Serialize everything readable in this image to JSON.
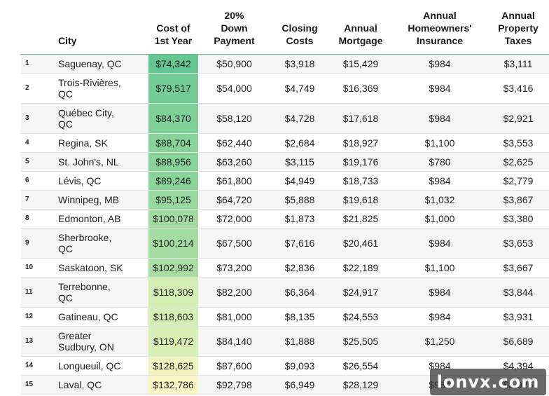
{
  "headers": {
    "rank": "",
    "city": "City",
    "cost": "Cost of\n1st Year",
    "down": "20%\nDown\nPayment",
    "closing": "Closing\nCosts",
    "mortgage": "Annual\nMortgage",
    "insurance": "Annual\nHomeowners'\nInsurance",
    "taxes": "Annual\nProperty\nTaxes"
  },
  "rows": [
    {
      "rank": "1",
      "city": "Saguenay, QC",
      "cost": "$74,342",
      "down": "$50,900",
      "closing": "$3,918",
      "mortgage": "$15,429",
      "insurance": "$984",
      "taxes": "$3,111",
      "cost_color": "#66c691"
    },
    {
      "rank": "2",
      "city": "Trois-Rivières,\nQC",
      "cost": "$79,517",
      "down": "$54,000",
      "closing": "$4,749",
      "mortgage": "$16,369",
      "insurance": "$984",
      "taxes": "$3,416",
      "cost_color": "#73cb95"
    },
    {
      "rank": "3",
      "city": "Québec City,\nQC",
      "cost": "$84,370",
      "down": "$58,120",
      "closing": "$4,728",
      "mortgage": "$17,618",
      "insurance": "$984",
      "taxes": "$2,921",
      "cost_color": "#7ecf98"
    },
    {
      "rank": "4",
      "city": "Regina, SK",
      "cost": "$88,704",
      "down": "$62,440",
      "closing": "$2,684",
      "mortgage": "$18,927",
      "insurance": "$1,100",
      "taxes": "$3,553",
      "cost_color": "#88d39a"
    },
    {
      "rank": "5",
      "city": "St. John's, NL",
      "cost": "$88,956",
      "down": "$63,260",
      "closing": "$3,115",
      "mortgage": "$19,176",
      "insurance": "$780",
      "taxes": "$2,625",
      "cost_color": "#89d39b"
    },
    {
      "rank": "6",
      "city": "Lévis, QC",
      "cost": "$89,246",
      "down": "$61,800",
      "closing": "$4,949",
      "mortgage": "$18,733",
      "insurance": "$984",
      "taxes": "$2,779",
      "cost_color": "#8ad49b"
    },
    {
      "rank": "7",
      "city": "Winnipeg, MB",
      "cost": "$95,125",
      "down": "$64,720",
      "closing": "$5,888",
      "mortgage": "$19,618",
      "insurance": "$1,032",
      "taxes": "$3,867",
      "cost_color": "#97d89e"
    },
    {
      "rank": "8",
      "city": "Edmonton, AB",
      "cost": "$100,078",
      "down": "$72,000",
      "closing": "$1,873",
      "mortgage": "$21,825",
      "insurance": "$1,000",
      "taxes": "$3,380",
      "cost_color": "#a2dca1"
    },
    {
      "rank": "9",
      "city": "Sherbrooke,\nQC",
      "cost": "$100,214",
      "down": "$67,500",
      "closing": "$7,616",
      "mortgage": "$20,461",
      "insurance": "$984",
      "taxes": "$3,653",
      "cost_color": "#a3dca1"
    },
    {
      "rank": "10",
      "city": "Saskatoon, SK",
      "cost": "$102,992",
      "down": "$73,200",
      "closing": "$2,836",
      "mortgage": "$22,189",
      "insurance": "$1,100",
      "taxes": "$3,667",
      "cost_color": "#a9dea3"
    },
    {
      "rank": "11",
      "city": "Terrebonne,\nQC",
      "cost": "$118,309",
      "down": "$82,200",
      "closing": "$6,364",
      "mortgage": "$24,917",
      "insurance": "$984",
      "taxes": "$3,844",
      "cost_color": "#d3eeb3"
    },
    {
      "rank": "12",
      "city": "Gatineau, QC",
      "cost": "$118,603",
      "down": "$81,000",
      "closing": "$8,135",
      "mortgage": "$24,553",
      "insurance": "$984",
      "taxes": "$3,931",
      "cost_color": "#d4eeb3"
    },
    {
      "rank": "13",
      "city": "Greater\nSudbury, ON",
      "cost": "$119,472",
      "down": "$84,140",
      "closing": "$1,888",
      "mortgage": "$25,505",
      "insurance": "$1,250",
      "taxes": "$6,689",
      "cost_color": "#d8efb5"
    },
    {
      "rank": "14",
      "city": "Longueuil, QC",
      "cost": "$128,625",
      "down": "$87,600",
      "closing": "$9,093",
      "mortgage": "$26,554",
      "insurance": "$984",
      "taxes": "$4,394",
      "cost_color": "#f0f5bf"
    },
    {
      "rank": "15",
      "city": "Laval, QC",
      "cost": "$132,786",
      "down": "$92,798",
      "closing": "$6,949",
      "mortgage": "$28,129",
      "insurance": "$984",
      "taxes": "$3,926",
      "cost_color": "#fbf7c4"
    }
  ],
  "watermark": "lonvx.com"
}
